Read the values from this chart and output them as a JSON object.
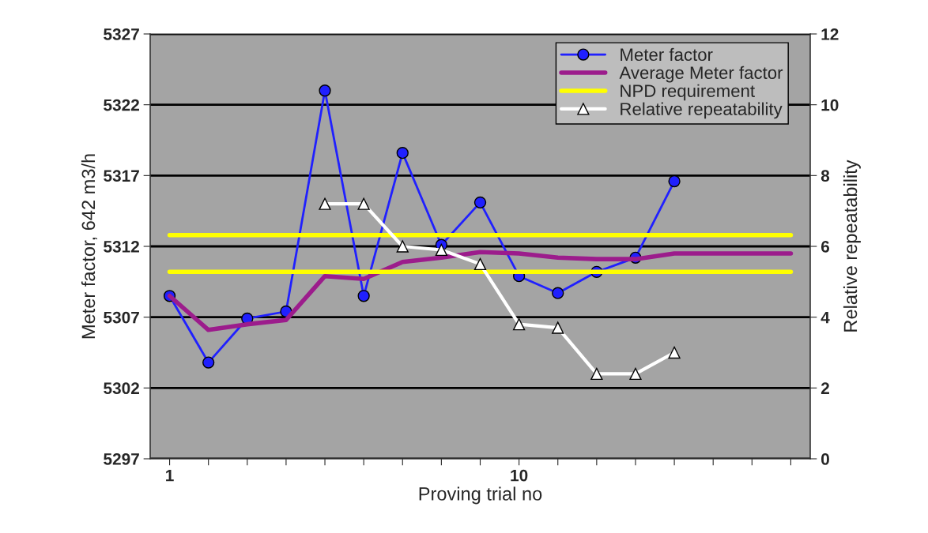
{
  "chart_data": {
    "type": "line",
    "xlabel": "Proving trial no",
    "ylabel": "Meter factor, 642 m3/h",
    "y2label": "Relative repeatability",
    "categories": [
      "1",
      null,
      null,
      null,
      null,
      null,
      null,
      null,
      null,
      "10",
      null,
      null,
      null,
      null,
      null,
      null,
      null
    ],
    "series": [
      {
        "name": "Meter factor",
        "color": "#2020ff",
        "marker": "circle",
        "values": [
          5308.5,
          5303.8,
          5306.9,
          5307.4,
          5323.0,
          5308.5,
          5318.6,
          5312.1,
          5315.1,
          5309.9,
          5308.7,
          5310.2,
          5311.2,
          5316.6,
          null,
          null,
          null
        ]
      },
      {
        "name": "Average Meter factor",
        "color": "#9c1c8c",
        "values": [
          5308.5,
          5306.1,
          5306.5,
          5306.8,
          5309.9,
          5309.7,
          5310.9,
          5311.2,
          5311.6,
          5311.5,
          5311.2,
          5311.1,
          5311.1,
          5311.5,
          5311.5,
          5311.5,
          5311.5
        ]
      },
      {
        "name": "NPD requirement",
        "color": "#ffff00",
        "values": [
          5312.8,
          5312.8,
          5312.8,
          5312.8,
          5312.8,
          5312.8,
          5312.8,
          5312.8,
          5312.8,
          5312.8,
          5312.8,
          5312.8,
          5312.8,
          5312.8,
          5312.8,
          5312.8,
          5312.8
        ]
      },
      {
        "color": "#ffff00",
        "values": [
          5310.2,
          5310.2,
          5310.2,
          5310.2,
          5310.2,
          5310.2,
          5310.2,
          5310.2,
          5310.2,
          5310.2,
          5310.2,
          5310.2,
          5310.2,
          5310.2,
          5310.2,
          5310.2,
          5310.2
        ]
      },
      {
        "name": "Relative repeatability",
        "color": "#ffffff",
        "marker": "triangle",
        "axis": "y2",
        "values": [
          null,
          null,
          null,
          null,
          7.2,
          7.2,
          6.0,
          5.9,
          5.5,
          3.8,
          3.7,
          2.4,
          2.4,
          3.0,
          null,
          null,
          null
        ]
      }
    ],
    "ylim": [
      5297,
      5327
    ],
    "yticks": [
      5297,
      5302,
      5307,
      5312,
      5317,
      5322,
      5327
    ],
    "y2lim": [
      0,
      12
    ],
    "y2ticks": [
      0,
      2,
      4,
      6,
      8,
      10,
      12
    ],
    "grid": "y",
    "legend": "top right"
  }
}
